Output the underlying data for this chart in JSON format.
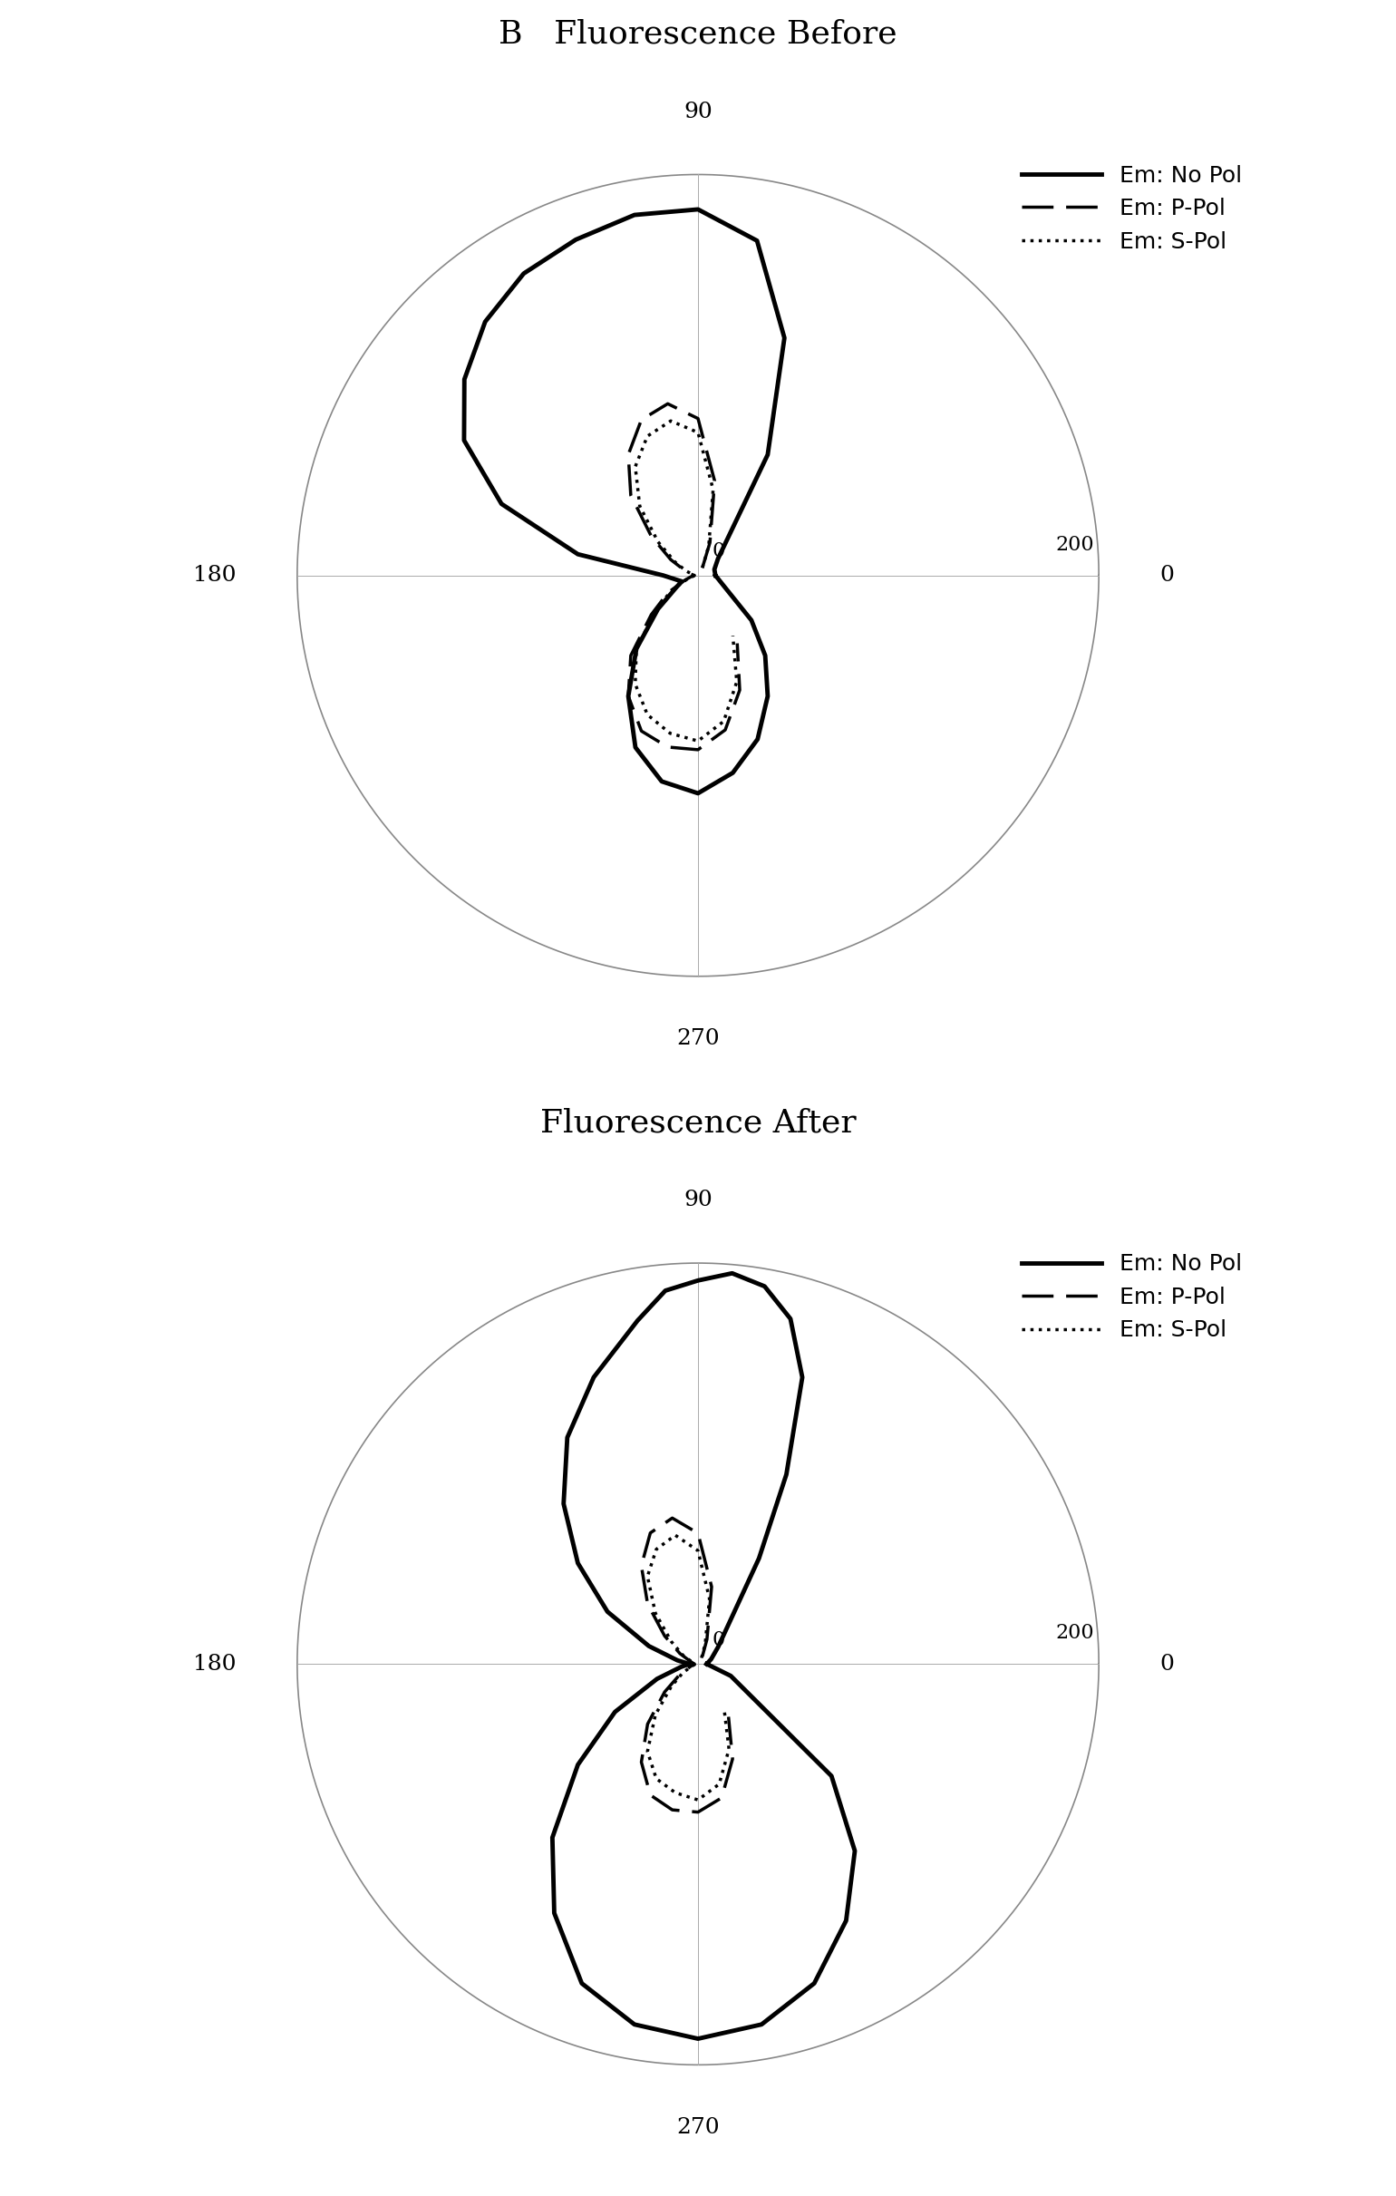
{
  "title_before": "B   Fluorescence Before",
  "title_after": "Fluorescence After",
  "title_fontsize": 26,
  "label_fontsize": 18,
  "tick_label_fontsize": 18,
  "legend_labels": [
    "Em: No Pol",
    "Em: P-Pol",
    "Em: S-Pol"
  ],
  "r_max": 230,
  "before": {
    "no_pol": {
      "angles_deg": [
        0,
        20,
        40,
        60,
        70,
        80,
        90,
        100,
        110,
        120,
        130,
        140,
        150,
        160,
        170,
        180,
        200,
        210,
        220,
        230,
        240,
        250,
        260,
        270,
        280,
        290,
        300,
        310,
        320,
        340,
        360
      ],
      "r": [
        10,
        10,
        15,
        80,
        145,
        195,
        210,
        210,
        205,
        200,
        190,
        175,
        155,
        120,
        70,
        20,
        10,
        15,
        30,
        55,
        80,
        105,
        120,
        125,
        115,
        100,
        80,
        60,
        40,
        15,
        10
      ]
    },
    "p_pol": {
      "angles_deg": [
        60,
        70,
        80,
        90,
        100,
        110,
        120,
        130,
        140,
        150,
        160,
        170,
        180,
        190,
        200,
        210,
        220,
        230,
        240,
        250,
        260,
        270,
        280,
        290,
        300
      ],
      "r": [
        5,
        20,
        55,
        90,
        100,
        95,
        80,
        60,
        35,
        18,
        8,
        4,
        2,
        4,
        8,
        20,
        35,
        60,
        80,
        95,
        100,
        100,
        90,
        70,
        45
      ]
    },
    "s_pol": {
      "angles_deg": [
        60,
        70,
        80,
        90,
        100,
        110,
        120,
        130,
        140,
        150,
        160,
        170,
        180,
        190,
        200,
        210,
        220,
        230,
        240,
        250,
        260,
        270,
        280,
        290,
        300
      ],
      "r": [
        5,
        18,
        50,
        82,
        90,
        85,
        72,
        52,
        30,
        15,
        7,
        3,
        2,
        3,
        7,
        18,
        32,
        55,
        72,
        85,
        92,
        95,
        85,
        65,
        40
      ]
    }
  },
  "after": {
    "no_pol": {
      "angles_deg": [
        0,
        20,
        40,
        60,
        65,
        70,
        75,
        80,
        85,
        90,
        95,
        100,
        110,
        120,
        130,
        140,
        150,
        160,
        170,
        180,
        190,
        200,
        210,
        220,
        230,
        240,
        250,
        260,
        270,
        280,
        290,
        300,
        310,
        320,
        340,
        360
      ],
      "r": [
        5,
        8,
        15,
        70,
        120,
        175,
        205,
        220,
        225,
        220,
        215,
        200,
        175,
        150,
        120,
        90,
        60,
        30,
        12,
        5,
        10,
        25,
        55,
        90,
        130,
        165,
        195,
        210,
        215,
        210,
        195,
        170,
        140,
        100,
        20,
        5
      ]
    },
    "p_pol": {
      "angles_deg": [
        60,
        70,
        80,
        90,
        100,
        110,
        120,
        130,
        140,
        150,
        160,
        170,
        180,
        190,
        200,
        210,
        220,
        230,
        240,
        250,
        260,
        270,
        280,
        290,
        300
      ],
      "r": [
        5,
        15,
        45,
        75,
        85,
        80,
        65,
        45,
        25,
        12,
        5,
        3,
        2,
        3,
        5,
        12,
        25,
        45,
        65,
        80,
        85,
        85,
        78,
        58,
        35
      ]
    },
    "s_pol": {
      "angles_deg": [
        60,
        70,
        80,
        90,
        100,
        110,
        120,
        130,
        140,
        150,
        160,
        170,
        180,
        190,
        200,
        210,
        220,
        230,
        240,
        250,
        260,
        270,
        280,
        290,
        300
      ],
      "r": [
        4,
        12,
        38,
        65,
        75,
        70,
        58,
        38,
        20,
        10,
        4,
        2,
        2,
        2,
        4,
        10,
        20,
        38,
        58,
        70,
        75,
        78,
        70,
        52,
        30
      ]
    }
  }
}
